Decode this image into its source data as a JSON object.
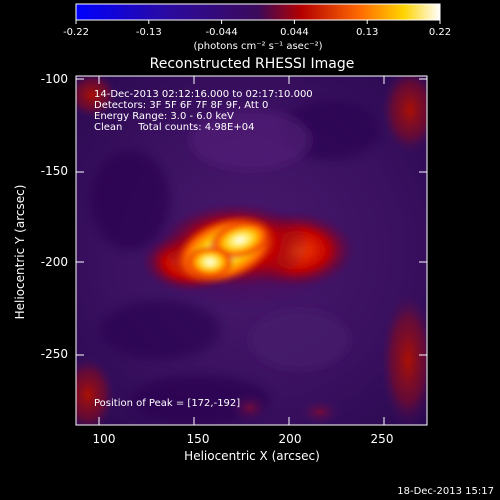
{
  "colorbar": {
    "ticks": [
      "-0.22",
      "-0.13",
      "-0.044",
      "0.044",
      "0.13",
      "0.22"
    ],
    "units": "(photons cm⁻² s⁻¹ asec⁻²)"
  },
  "title": "Reconstructed RHESSI Image",
  "info": {
    "time_range": "14-Dec-2013 02:12:16.000 to 02:17:10.000",
    "detectors": "Detectors: 3F 5F 6F 7F 8F 9F, Att 0",
    "energy": "Energy Range: 3.0 - 6.0 keV",
    "clean": "Clean     Total counts: 4.98E+04"
  },
  "peak": "Position of Peak = [172,-192]",
  "axes": {
    "xlabel": "Heliocentric X (arcsec)",
    "ylabel": "Heliocentric Y (arcsec)",
    "xticks": [
      "100",
      "150",
      "200",
      "250"
    ],
    "yticks": [
      "-100",
      "-150",
      "-200",
      "-250"
    ]
  },
  "timestamp": "18-Dec-2013 15:17"
}
